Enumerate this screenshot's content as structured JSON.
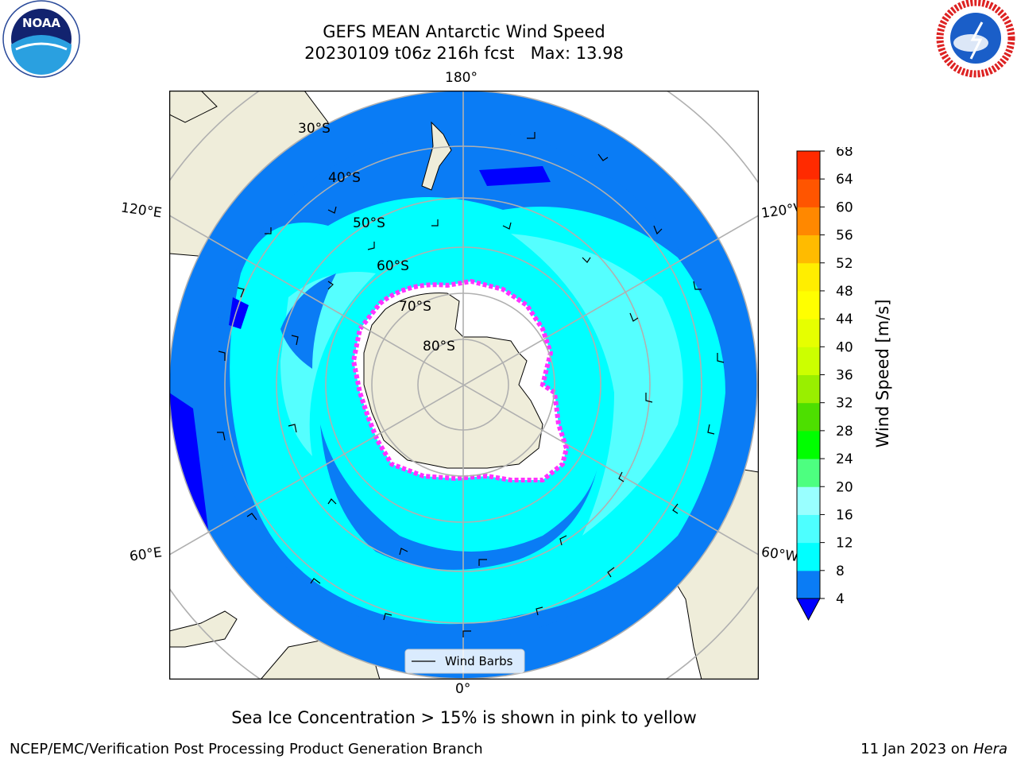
{
  "header": {
    "title_line1": "GEFS MEAN Antarctic Wind Speed",
    "title_line2": "20230109 t06z 216h fcst   Max: 13.98"
  },
  "logos": {
    "left_name": "noaa-logo",
    "left_text": "NOAA",
    "right_name": "nws-logo"
  },
  "map": {
    "longitude_labels": {
      "top": "180°",
      "bottom": "0°",
      "upper_left": "120°E",
      "upper_right": "120°W",
      "lower_left": "60°E",
      "lower_right": "60°W"
    },
    "latitude_labels": [
      "30°S",
      "40°S",
      "50°S",
      "60°S",
      "70°S",
      "80°S"
    ],
    "legend_label": "Wind Barbs",
    "colors": {
      "land": "#efedda",
      "wind_4_8": "#0a7cf5",
      "wind_8_12": "#00ffff",
      "wind_12_16": "#55ffff",
      "wind_below_4": "#0000ff",
      "ice_edge": "#ff33ff",
      "grid": "#b0b0b0"
    }
  },
  "colorbar": {
    "label": "Wind Speed [m/s]",
    "ticks": [
      "4",
      "8",
      "12",
      "16",
      "20",
      "24",
      "28",
      "32",
      "36",
      "40",
      "44",
      "48",
      "52",
      "56",
      "60",
      "64",
      "68"
    ],
    "colors": [
      "#0a7cf5",
      "#00ffff",
      "#4dffff",
      "#99ffff",
      "#4dff80",
      "#00ff00",
      "#4ddf00",
      "#99ef00",
      "#ccff00",
      "#e6ff00",
      "#ffff00",
      "#ffee00",
      "#ffbb00",
      "#ff8800",
      "#ff5500",
      "#ff2a00"
    ],
    "under_color": "#0000ff"
  },
  "note": "Sea Ice Concentration > 15% is shown in pink to yellow",
  "footer": {
    "left": "NCEP/EMC/Verification Post Processing Product Generation Branch",
    "right_prefix": "11 Jan 2023 on ",
    "right_machine": "Hera"
  }
}
